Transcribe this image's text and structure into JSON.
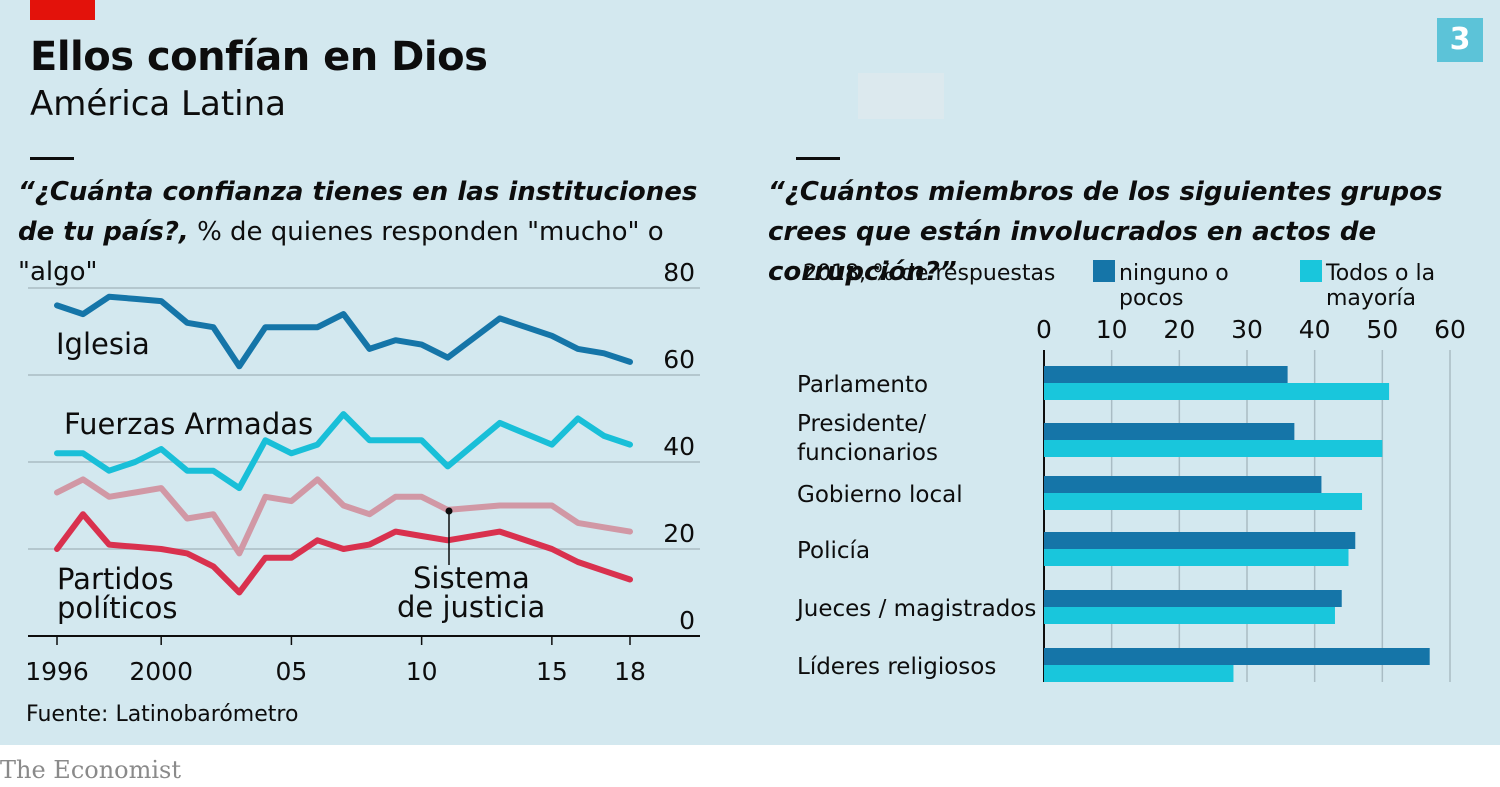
{
  "header": {
    "title": "Ellos confían en Dios",
    "subtitle": "América Latina",
    "badge": "3"
  },
  "left_chart": {
    "question": "“¿Cuánta confianza tienes en las instituciones de tu país?,",
    "question_plain": "% de quienes responden \"mucho\" o \"algo\""
  },
  "right_chart": {
    "question": "“¿Cuántos miembros de los siguientes grupos crees que están involucrados en actos de corrupción?”",
    "year_note": "2018, % de respuestas"
  },
  "source": "Fuente: Latinobarómetro",
  "logo": "The Economist",
  "colors": {
    "panel": "#d3e8ef",
    "iglesia": "#1575a8",
    "fuerzas": "#19bfd8",
    "sistema": "#d198a5",
    "partidos": "#d9314e",
    "dark_bar": "#1575a8",
    "light_bar": "#19c6dc",
    "accent_red": "#e3120b"
  },
  "chart_data": [
    {
      "type": "line",
      "ylim": [
        0,
        80
      ],
      "yticks": [
        0,
        20,
        40,
        60,
        80
      ],
      "xlim": [
        1996,
        2018
      ],
      "xticks": [
        1996,
        2000,
        2005,
        2010,
        2015,
        2018
      ],
      "xtick_labels": [
        "1996",
        "2000",
        "05",
        "10",
        "15",
        "18"
      ],
      "series": [
        {
          "name": "Iglesia",
          "color": "#1575a8",
          "x": [
            1996,
            1997,
            1998,
            1999,
            2000,
            2001,
            2002,
            2003,
            2004,
            2005,
            2006,
            2007,
            2008,
            2009,
            2010,
            2011,
            2013,
            2015,
            2016,
            2017,
            2018
          ],
          "values": [
            76,
            74,
            78,
            77.5,
            77,
            72,
            71,
            62,
            71,
            71,
            71,
            74,
            66,
            68,
            67,
            64,
            73,
            69,
            66,
            65,
            63
          ]
        },
        {
          "name": "Fuerzas Armadas",
          "color": "#19bfd8",
          "x": [
            1996,
            1997,
            1998,
            1999,
            2000,
            2001,
            2002,
            2003,
            2004,
            2005,
            2006,
            2007,
            2008,
            2009,
            2010,
            2011,
            2013,
            2015,
            2016,
            2017,
            2018
          ],
          "values": [
            42,
            42,
            38,
            40,
            43,
            38,
            38,
            34,
            45,
            42,
            44,
            51,
            45,
            45,
            45,
            39,
            49,
            44,
            50,
            46,
            44
          ]
        },
        {
          "name": "Sistema de justicia",
          "color": "#d198a5",
          "x": [
            1996,
            1997,
            1998,
            1999,
            2000,
            2001,
            2002,
            2003,
            2004,
            2005,
            2006,
            2007,
            2008,
            2009,
            2010,
            2011,
            2013,
            2015,
            2016,
            2017,
            2018
          ],
          "values": [
            33,
            36,
            32,
            33,
            34,
            27,
            28,
            19,
            32,
            31,
            36,
            30,
            28,
            32,
            32,
            29,
            30,
            30,
            26,
            25,
            24
          ]
        },
        {
          "name": "Partidos políticos",
          "color": "#d9314e",
          "x": [
            1996,
            1997,
            1998,
            1999,
            2000,
            2001,
            2002,
            2003,
            2004,
            2005,
            2006,
            2007,
            2008,
            2009,
            2010,
            2011,
            2013,
            2015,
            2016,
            2017,
            2018
          ],
          "values": [
            20,
            28,
            21,
            20.5,
            20,
            19,
            16,
            10,
            18,
            18,
            22,
            20,
            21,
            24,
            23,
            22,
            24,
            20,
            17,
            15,
            13
          ]
        }
      ]
    },
    {
      "type": "bar",
      "orientation": "horizontal",
      "xlim": [
        0,
        60
      ],
      "xticks": [
        0,
        10,
        20,
        30,
        40,
        50,
        60
      ],
      "categories": [
        "Parlamento",
        "Presidente/ funcionarios",
        "Gobierno local",
        "Policía",
        "Jueces / magistrados",
        "Líderes religiosos"
      ],
      "series": [
        {
          "name": "ninguno o pocos",
          "color": "#1575a8",
          "values": [
            36,
            37,
            41,
            46,
            44,
            57
          ]
        },
        {
          "name": "Todos o la mayoría",
          "color": "#19c6dc",
          "values": [
            51,
            50,
            47,
            45,
            43,
            28
          ]
        }
      ]
    }
  ]
}
